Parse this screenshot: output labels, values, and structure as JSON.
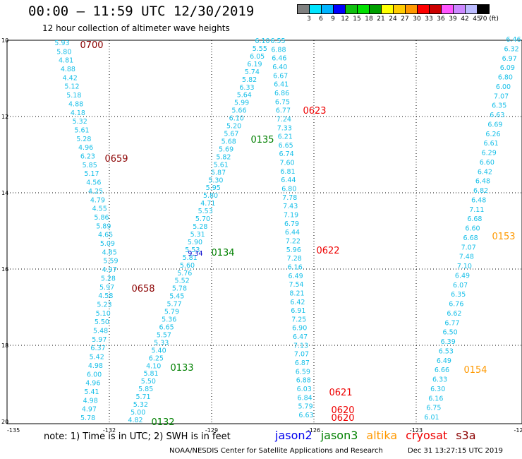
{
  "header": {
    "title": "00:00 – 11:59 UTC 12/30/2019",
    "subtitle": "12 hour collection of altimeter wave heights"
  },
  "legend": {
    "colors": [
      "#808080",
      "#00e5ff",
      "#00b4ff",
      "#0000ff",
      "#10c010",
      "#00e000",
      "#00a000",
      "#ffff00",
      "#ffcc00",
      "#ff9900",
      "#ff0000",
      "#cc0000",
      "#ff55ff",
      "#cc88ff",
      "#bbbbff",
      "#000000"
    ],
    "labels": [
      "3",
      "6",
      "9",
      "12",
      "15",
      "18",
      "21",
      "24",
      "27",
      "30",
      "33",
      "36",
      "39",
      "42",
      "45",
      "70 (ft)"
    ]
  },
  "axes": {
    "lon_labels": [
      "-135",
      "-132",
      "-129",
      "-126",
      "-123",
      "-12"
    ],
    "lat_labels": [
      "10",
      "12",
      "14",
      "16",
      "18",
      "20"
    ]
  },
  "tracks": [
    {
      "color": "#16bfe8",
      "values": [
        "5.93",
        "5.80",
        "4.81",
        "4.88",
        "4.42",
        "5.12",
        "5.18",
        "4.88",
        "4.18",
        "5.32",
        "5.61",
        "5.28",
        "4.96",
        "6.23",
        "5.85",
        "5.17",
        "4.56",
        "4.25",
        "4.79",
        "4.55",
        "5.86",
        "5.89",
        "4.65",
        "5.09",
        "4.85",
        "5.59",
        "4.97",
        "5.28",
        "5.97",
        "4.58",
        "5.23",
        "5.10",
        "5.50",
        "5.48",
        "5.97",
        "6.37",
        "5.42",
        "4.98",
        "6.00",
        "4.96",
        "5.41",
        "4.98",
        "4.97",
        "5.78"
      ]
    },
    {
      "color": "#16bfe8",
      "values": [
        "6.10",
        "5.55",
        "6.05",
        "6.19",
        "5.74",
        "5.82",
        "6.33",
        "5.64",
        "5.99",
        "5.66",
        "6.10",
        "5.20",
        "5.67",
        "5.68",
        "5.69",
        "5.82",
        "5.61",
        "5.87",
        "5.30",
        "5.95",
        "5.80",
        "4.71",
        "5.53",
        "5.70",
        "5.28",
        "5.31",
        "5.90",
        "5.53",
        "5.81",
        "5.60",
        "5.76",
        "5.52",
        "5.78",
        "5.45",
        "5.77",
        "5.79",
        "5.36",
        "6.65",
        "5.57",
        "5.33",
        "5.40",
        "6.25",
        "4.10",
        "5.81",
        "5.50",
        "5.85",
        "5.71",
        "5.32",
        "5.00",
        "4.82"
      ]
    },
    {
      "color": "#16bfe8",
      "values": [
        "6.55",
        "6.88",
        "6.46",
        "6.40",
        "6.67",
        "6.41",
        "6.86",
        "6.75",
        "6.77",
        "7.24",
        "7.33",
        "6.21",
        "6.65",
        "6.74",
        "7.60",
        "6.81",
        "6.44",
        "6.80",
        "7.78",
        "7.43",
        "7.19",
        "6.79",
        "6.44",
        "7.22",
        "5.96",
        "7.28",
        "6.16",
        "6.49",
        "7.54",
        "8.21",
        "6.42",
        "6.91",
        "7.25",
        "6.90",
        "6.47",
        "7.13",
        "7.07",
        "6.87",
        "6.59",
        "6.88",
        "6.03",
        "6.84",
        "5.79",
        "6.63"
      ]
    },
    {
      "color": "#16bfe8",
      "values": [
        "6.46",
        "6.32",
        "6.97",
        "6.09",
        "6.80",
        "6.00",
        "7.07",
        "6.35",
        "6.63",
        "6.69",
        "6.26",
        "6.61",
        "6.29",
        "6.60",
        "6.42",
        "6.48",
        "6.82",
        "6.48",
        "7.11",
        "6.68",
        "6.60",
        "6.68",
        "7.07",
        "7.48",
        "7.10",
        "6.49",
        "6.07",
        "6.35",
        "6.76",
        "6.62",
        "6.77",
        "6.50",
        "6.39",
        "6.53",
        "6.49",
        "6.66",
        "6.33",
        "6.30",
        "6.16",
        "6.75",
        "6.01"
      ]
    }
  ],
  "special_value": {
    "value": "9.34",
    "color": "#0000cc"
  },
  "time_labels": [
    {
      "text": "0700",
      "color": "#8b0000"
    },
    {
      "text": "0659",
      "color": "#8b0000"
    },
    {
      "text": "0658",
      "color": "#8b0000"
    },
    {
      "text": "0135",
      "color": "#008000"
    },
    {
      "text": "0134",
      "color": "#008000"
    },
    {
      "text": "0133",
      "color": "#008000"
    },
    {
      "text": "0132",
      "color": "#008000"
    },
    {
      "text": "0623",
      "color": "#ee0000"
    },
    {
      "text": "0622",
      "color": "#ee0000"
    },
    {
      "text": "0621",
      "color": "#ee0000"
    },
    {
      "text": "0620",
      "color": "#ee0000"
    },
    {
      "text": "0620",
      "color": "#ee0000"
    },
    {
      "text": "0153",
      "color": "#ff9900"
    },
    {
      "text": "0154",
      "color": "#ff9900"
    }
  ],
  "footer": {
    "note": "note: 1) Time is in UTC; 2) SWH is in feet",
    "satellites": [
      {
        "name": "jason2",
        "color": "#0000ee"
      },
      {
        "name": "jason3",
        "color": "#008000"
      },
      {
        "name": "altika",
        "color": "#ff9900"
      },
      {
        "name": "cryosat",
        "color": "#ee0000"
      },
      {
        "name": "s3a",
        "color": "#8b0000"
      }
    ],
    "credit": "NOAA/NESDIS Center for Satellite Applications and Research",
    "date": "Dec 31 13:27:15 UTC 2019"
  }
}
